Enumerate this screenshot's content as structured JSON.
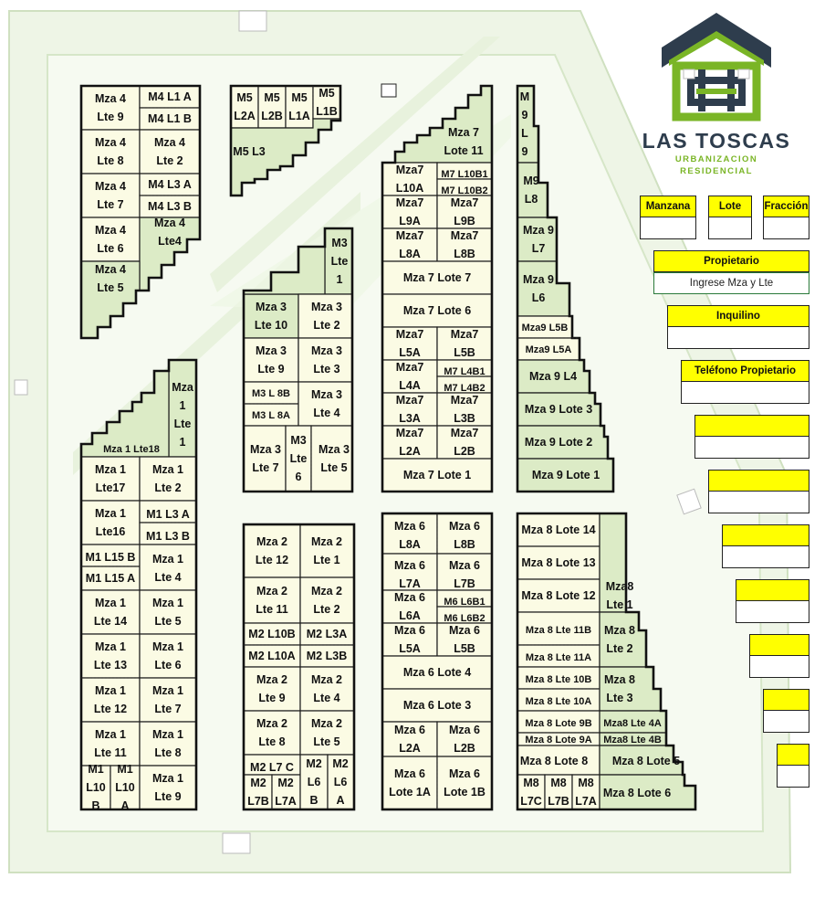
{
  "brand": {
    "name": "LAS TOSCAS",
    "subtitle_line1": "URBANIZACION",
    "subtitle_line2": "RESIDENCIAL",
    "colors": {
      "green": "#7ab526",
      "navy": "#2e3d4d"
    }
  },
  "form": {
    "manzana_label": "Manzana",
    "lote_label": "Lote",
    "fraccion_label": "Fracción",
    "propietario_label": "Propietario",
    "propietario_value": "Ingrese Mza y Lte",
    "inquilino_label": "Inquilino",
    "telefono_label": "Teléfono Propietario"
  },
  "colors": {
    "lot_light": "#fbfbe4",
    "lot_green": "#dcebc6",
    "road": "#eef5e6",
    "header_yellow": "#ffff00"
  },
  "lots": [
    [
      "Mza 4",
      "Lte 9"
    ],
    [
      "M4 L1 A"
    ],
    [
      "M4 L1 B"
    ],
    [
      "Mza 4",
      "Lte 8"
    ],
    [
      "Mza 4",
      "Lte 2"
    ],
    [
      "Mza 4",
      "Lte 7"
    ],
    [
      "M4 L3 A"
    ],
    [
      "M4 L3 B"
    ],
    [
      "Mza 4",
      "Lte 6"
    ],
    [
      "Mza 4",
      "Lte4"
    ],
    [
      "Mza 4",
      "Lte 5"
    ],
    [
      "M5",
      "L2A"
    ],
    [
      "M5",
      "L2B"
    ],
    [
      "M5",
      "L1A"
    ],
    [
      "M5",
      "L1B"
    ],
    [
      "M5 L3"
    ],
    [
      "M3",
      "Lte",
      "1"
    ],
    [
      "Mza 3",
      "Lte 10"
    ],
    [
      "Mza 3",
      "Lte 2"
    ],
    [
      "Mza 3",
      "Lte 9"
    ],
    [
      "Mza 3",
      "Lte 3"
    ],
    [
      "M3  L 8B"
    ],
    [
      "M3  L 8A"
    ],
    [
      "Mza 3",
      "Lte 4"
    ],
    [
      "Mza 3",
      "Lte 7"
    ],
    [
      "M3",
      "Lte",
      "6"
    ],
    [
      "Mza 3",
      "Lte 5"
    ],
    [
      "Mza 7",
      "Lote 11"
    ],
    [
      "Mza7",
      "L10A"
    ],
    [
      "M7 L10B1"
    ],
    [
      "M7 L10B2"
    ],
    [
      "Mza7",
      "L9A"
    ],
    [
      "Mza7",
      "L9B"
    ],
    [
      "Mza7",
      "L8A"
    ],
    [
      "Mza7",
      "L8B"
    ],
    [
      "Mza 7 Lote 7"
    ],
    [
      "Mza 7 Lote 6"
    ],
    [
      "Mza7",
      "L5A"
    ],
    [
      "Mza7",
      "L5B"
    ],
    [
      "Mza7",
      "L4A"
    ],
    [
      "M7 L4B1"
    ],
    [
      "M7 L4B2"
    ],
    [
      "Mza7",
      "L3A"
    ],
    [
      "Mza7",
      "L3B"
    ],
    [
      "Mza7",
      "L2A"
    ],
    [
      "Mza7",
      "L2B"
    ],
    [
      "Mza 7 Lote 1"
    ],
    [
      "M",
      "9",
      "L",
      "9"
    ],
    [
      "M9",
      "L8"
    ],
    [
      "Mza 9",
      "L7"
    ],
    [
      "Mza 9",
      "L6"
    ],
    [
      "Mza9 L5B"
    ],
    [
      "Mza9 L5A"
    ],
    [
      "Mza 9 L4"
    ],
    [
      "Mza 9 Lote 3"
    ],
    [
      "Mza 9 Lote 2"
    ],
    [
      "Mza 9 Lote 1"
    ],
    [
      "Mza",
      "1",
      "Lte",
      "1"
    ],
    [
      "Mza 1 Lte18"
    ],
    [
      "Mza 1",
      "Lte17"
    ],
    [
      "Mza 1",
      "Lte 2"
    ],
    [
      "Mza 1",
      "Lte16"
    ],
    [
      "M1 L3 A"
    ],
    [
      "M1 L3 B"
    ],
    [
      "M1 L15 B"
    ],
    [
      "M1 L15 A"
    ],
    [
      "Mza 1",
      "Lte 4"
    ],
    [
      "Mza 1",
      "Lte 14"
    ],
    [
      "Mza 1",
      "Lte 5"
    ],
    [
      "Mza 1",
      "Lte 13"
    ],
    [
      "Mza 1",
      "Lte 6"
    ],
    [
      "Mza 1",
      "Lte 12"
    ],
    [
      "Mza 1",
      "Lte 7"
    ],
    [
      "Mza 1",
      "Lte 11"
    ],
    [
      "Mza 1",
      "Lte 8"
    ],
    [
      "M1",
      "L10",
      "B"
    ],
    [
      "M1",
      "L10",
      "A"
    ],
    [
      "Mza 1",
      "Lte 9"
    ],
    [
      "Mza 2",
      "Lte 12"
    ],
    [
      "Mza 2",
      "Lte 1"
    ],
    [
      "Mza 2",
      "Lte 11"
    ],
    [
      "Mza 2",
      "Lte 2"
    ],
    [
      "M2 L10B"
    ],
    [
      "M2 L10A"
    ],
    [
      "M2 L3A"
    ],
    [
      "M2 L3B"
    ],
    [
      "Mza 2",
      "Lte 9"
    ],
    [
      "Mza 2",
      "Lte 4"
    ],
    [
      "Mza 2",
      "Lte 8"
    ],
    [
      "Mza 2",
      "Lte 5"
    ],
    [
      "M2 L7 C"
    ],
    [
      "M2",
      "L7B"
    ],
    [
      "M2",
      "L7A"
    ],
    [
      "M2",
      "L6",
      "B"
    ],
    [
      "M2",
      "L6",
      "A"
    ],
    [
      "Mza 6",
      "L8A"
    ],
    [
      "Mza 6",
      "L8B"
    ],
    [
      "Mza 6",
      "L7A"
    ],
    [
      "Mza 6",
      "L7B"
    ],
    [
      "Mza 6",
      "L6A"
    ],
    [
      "M6 L6B1"
    ],
    [
      "M6 L6B2"
    ],
    [
      "Mza 6",
      "L5A"
    ],
    [
      "Mza 6",
      "L5B"
    ],
    [
      "Mza 6 Lote 4"
    ],
    [
      "Mza 6 Lote 3"
    ],
    [
      "Mza 6",
      "L2A"
    ],
    [
      "Mza 6",
      "L2B"
    ],
    [
      "Mza 6",
      "Lote 1A"
    ],
    [
      "Mza 6",
      "Lote 1B"
    ],
    [
      "Mza 8 Lote 14"
    ],
    [
      "Mza 8 Lote 13"
    ],
    [
      "Mza 8 Lote 12"
    ],
    [
      "Mza8",
      "Lte 1"
    ],
    [
      "Mza 8 Lte 11B"
    ],
    [
      "Mza 8 Lte 11A"
    ],
    [
      "Mza 8",
      "Lte 2"
    ],
    [
      "Mza 8 Lte 10B"
    ],
    [
      "Mza 8 Lte 10A"
    ],
    [
      "Mza 8",
      "Lte 3"
    ],
    [
      "Mza 8 Lote 9B"
    ],
    [
      "Mza 8 Lote 9A"
    ],
    [
      "Mza8 Lte 4A"
    ],
    [
      "Mza8 Lte 4B"
    ],
    [
      "Mza 8 Lote 8"
    ],
    [
      "Mza 8 Lote 5"
    ],
    [
      "M8",
      "L7C"
    ],
    [
      "M8",
      "L7B"
    ],
    [
      "M8",
      "L7A"
    ],
    [
      "Mza 8 Lote 6"
    ]
  ]
}
